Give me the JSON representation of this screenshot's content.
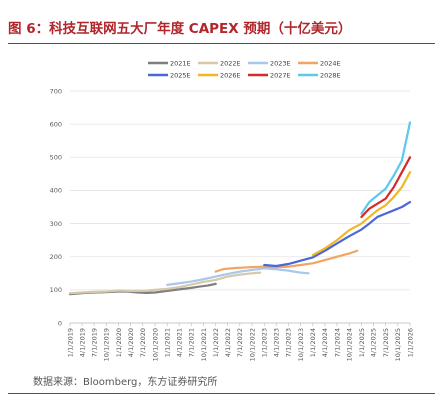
{
  "title": "图 6：科技互联网五大厂年度 CAPEX 预期（十亿美元）",
  "source": "数据来源：Bloomberg，东方证券研究所",
  "colors": {
    "accent": "#b0262b"
  },
  "chart_data": {
    "type": "line",
    "title": "图 6：科技互联网五大厂年度 CAPEX 预期（十亿美元）",
    "xlabel": "",
    "ylabel": "",
    "ylim": [
      0,
      700
    ],
    "yticks": [
      0,
      100,
      200,
      300,
      400,
      500,
      600,
      700
    ],
    "grid": true,
    "legend": "top",
    "xlim": [
      "2019-01-01",
      "2026-01-01"
    ],
    "xticks": [
      "1/1/2019",
      "4/1/2019",
      "7/1/2019",
      "10/1/2019",
      "1/1/2020",
      "4/1/2020",
      "7/1/2020",
      "10/1/2020",
      "1/1/2021",
      "4/1/2021",
      "7/1/2021",
      "10/1/2021",
      "1/1/2022",
      "4/1/2022",
      "7/1/2022",
      "10/1/2022",
      "1/1/2023",
      "4/1/2023",
      "7/1/2023",
      "10/1/2023",
      "1/1/2024",
      "4/1/2024",
      "7/1/2024",
      "10/1/2024",
      "1/1/2025",
      "4/1/2025",
      "7/1/2025",
      "10/1/2025",
      "1/1/2026"
    ],
    "series": [
      {
        "name": "2021E",
        "color": "#7f7f7f",
        "points": [
          [
            "2019-01-01",
            87
          ],
          [
            "2019-03-01",
            89
          ],
          [
            "2019-05-01",
            91
          ],
          [
            "2019-07-01",
            92
          ],
          [
            "2019-10-01",
            93
          ],
          [
            "2020-01-01",
            95
          ],
          [
            "2020-03-01",
            95
          ],
          [
            "2020-06-01",
            92
          ],
          [
            "2020-08-01",
            91
          ],
          [
            "2020-10-01",
            92
          ],
          [
            "2021-01-01",
            97
          ],
          [
            "2021-03-01",
            100
          ],
          [
            "2021-05-01",
            103
          ],
          [
            "2021-07-01",
            106
          ],
          [
            "2021-09-01",
            110
          ],
          [
            "2021-11-01",
            113
          ],
          [
            "2022-01-01",
            118
          ]
        ]
      },
      {
        "name": "2022E",
        "color": "#d6c8a8",
        "points": [
          [
            "2019-01-01",
            90
          ],
          [
            "2019-04-01",
            92
          ],
          [
            "2019-07-01",
            94
          ],
          [
            "2019-10-01",
            95
          ],
          [
            "2020-01-01",
            98
          ],
          [
            "2020-04-01",
            97
          ],
          [
            "2020-07-01",
            97
          ],
          [
            "2020-10-01",
            100
          ],
          [
            "2021-01-01",
            103
          ],
          [
            "2021-04-01",
            108
          ],
          [
            "2021-07-01",
            116
          ],
          [
            "2021-10-01",
            124
          ],
          [
            "2022-01-01",
            130
          ],
          [
            "2022-04-01",
            140
          ],
          [
            "2022-07-01",
            146
          ],
          [
            "2022-10-01",
            150
          ],
          [
            "2022-12-01",
            152
          ]
        ]
      },
      {
        "name": "2023E",
        "color": "#a8c8ec",
        "points": [
          [
            "2021-01-01",
            115
          ],
          [
            "2021-04-01",
            120
          ],
          [
            "2021-07-01",
            125
          ],
          [
            "2021-10-01",
            132
          ],
          [
            "2022-01-01",
            140
          ],
          [
            "2022-04-01",
            148
          ],
          [
            "2022-07-01",
            155
          ],
          [
            "2022-10-01",
            160
          ],
          [
            "2023-01-01",
            165
          ],
          [
            "2023-04-01",
            162
          ],
          [
            "2023-07-01",
            158
          ],
          [
            "2023-10-01",
            152
          ],
          [
            "2023-12-01",
            150
          ]
        ]
      },
      {
        "name": "2024E",
        "color": "#f4a460",
        "points": [
          [
            "2022-01-01",
            155
          ],
          [
            "2022-03-01",
            163
          ],
          [
            "2022-06-01",
            166
          ],
          [
            "2022-09-01",
            168
          ],
          [
            "2023-01-01",
            170
          ],
          [
            "2023-04-01",
            168
          ],
          [
            "2023-07-01",
            170
          ],
          [
            "2023-10-01",
            175
          ],
          [
            "2024-01-01",
            180
          ],
          [
            "2024-04-01",
            190
          ],
          [
            "2024-07-01",
            200
          ],
          [
            "2024-10-01",
            210
          ],
          [
            "2024-12-01",
            218
          ]
        ]
      },
      {
        "name": "2025E",
        "color": "#4a68d8",
        "points": [
          [
            "2023-01-01",
            175
          ],
          [
            "2023-04-01",
            172
          ],
          [
            "2023-07-01",
            178
          ],
          [
            "2023-10-01",
            188
          ],
          [
            "2024-01-01",
            198
          ],
          [
            "2024-04-01",
            218
          ],
          [
            "2024-07-01",
            240
          ],
          [
            "2024-10-01",
            262
          ],
          [
            "2025-01-01",
            282
          ],
          [
            "2025-03-01",
            300
          ],
          [
            "2025-05-01",
            320
          ],
          [
            "2025-07-01",
            330
          ],
          [
            "2025-09-01",
            340
          ],
          [
            "2025-11-01",
            350
          ],
          [
            "2026-01-01",
            365
          ]
        ]
      },
      {
        "name": "2026E",
        "color": "#f0b820",
        "points": [
          [
            "2024-01-01",
            205
          ],
          [
            "2024-04-01",
            225
          ],
          [
            "2024-07-01",
            250
          ],
          [
            "2024-10-01",
            280
          ],
          [
            "2025-01-01",
            300
          ],
          [
            "2025-03-01",
            320
          ],
          [
            "2025-05-01",
            340
          ],
          [
            "2025-07-01",
            355
          ],
          [
            "2025-09-01",
            380
          ],
          [
            "2025-11-01",
            410
          ],
          [
            "2026-01-01",
            455
          ]
        ]
      },
      {
        "name": "2027E",
        "color": "#d42a2a",
        "points": [
          [
            "2025-01-01",
            320
          ],
          [
            "2025-03-01",
            345
          ],
          [
            "2025-05-01",
            360
          ],
          [
            "2025-07-01",
            375
          ],
          [
            "2025-09-01",
            410
          ],
          [
            "2025-11-01",
            455
          ],
          [
            "2026-01-01",
            500
          ]
        ]
      },
      {
        "name": "2028E",
        "color": "#5bc8ec",
        "points": [
          [
            "2025-01-01",
            330
          ],
          [
            "2025-03-01",
            365
          ],
          [
            "2025-05-01",
            385
          ],
          [
            "2025-07-01",
            405
          ],
          [
            "2025-09-01",
            445
          ],
          [
            "2025-11-01",
            490
          ],
          [
            "2026-01-01",
            605
          ]
        ]
      }
    ]
  }
}
